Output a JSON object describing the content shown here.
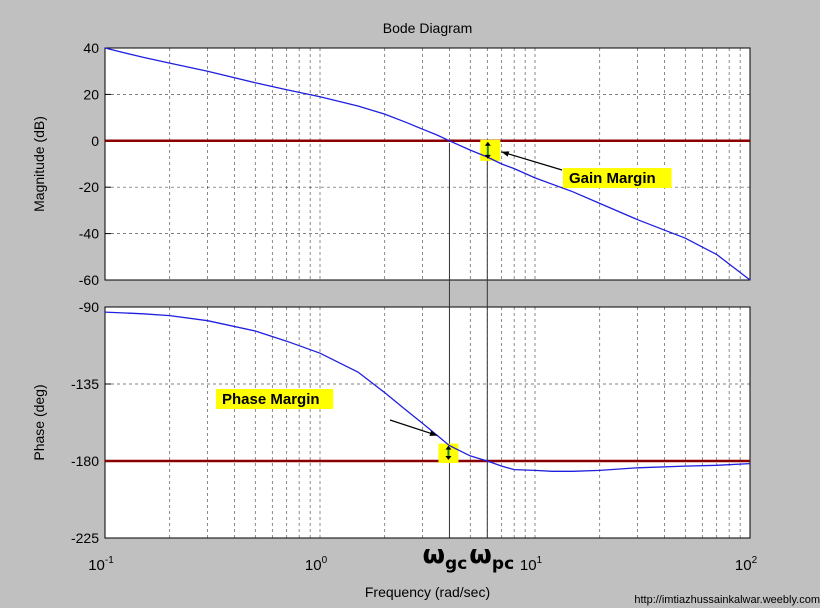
{
  "chart_data": {
    "type": "line",
    "title": "Bode Diagram",
    "xlabel": "Frequency (rad/sec)",
    "x_scale": "log",
    "xlim": [
      0.1,
      100
    ],
    "x_ticks": [
      {
        "value": 0.1,
        "base": "10",
        "exp": "-1"
      },
      {
        "value": 1,
        "base": "10",
        "exp": "0"
      },
      {
        "value": 10,
        "base": "10",
        "exp": "1"
      },
      {
        "value": 100,
        "base": "10",
        "exp": "2"
      }
    ],
    "grid": true,
    "colors": {
      "background": "#c0c0c0",
      "plot_bg": "#ffffff",
      "curve": "#1f1fe0",
      "reference": "#8b0000",
      "highlight": "#ffff00",
      "arrow": "#1a8a1a"
    },
    "magnitude": {
      "ylabel": "Magnitude (dB)",
      "ylim": [
        -60,
        40
      ],
      "y_ticks": [
        "40",
        "20",
        "0",
        "-20",
        "-40",
        "-60"
      ],
      "reference_line": 0,
      "x": [
        0.1,
        0.15,
        0.2,
        0.3,
        0.5,
        0.7,
        1.0,
        1.5,
        2.0,
        2.5,
        3.0,
        3.5,
        4.0,
        5.0,
        6.0,
        7.0,
        8.0,
        10,
        15,
        20,
        30,
        50,
        70,
        100
      ],
      "y": [
        40,
        36,
        33.5,
        30,
        25,
        22,
        19,
        15,
        11.5,
        8,
        5,
        2.5,
        0,
        -4,
        -7,
        -10,
        -12,
        -16,
        -22,
        -27,
        -34,
        -42,
        -49,
        -60
      ]
    },
    "phase": {
      "ylabel": "Phase (deg)",
      "ylim": [
        -225,
        -90
      ],
      "y_ticks": [
        "-90",
        "-135",
        "-180",
        "-225"
      ],
      "reference_line": -180,
      "x": [
        0.1,
        0.15,
        0.2,
        0.3,
        0.5,
        0.7,
        1.0,
        1.5,
        2.0,
        2.5,
        3.0,
        3.5,
        4.0,
        5.0,
        6.0,
        7.0,
        8.0,
        10,
        12,
        15,
        20,
        30,
        50,
        70,
        100
      ],
      "y": [
        -93,
        -94,
        -95,
        -98,
        -104,
        -110,
        -117,
        -128,
        -140,
        -150,
        -158,
        -165,
        -171,
        -177,
        -180,
        -183,
        -185,
        -185.5,
        -186,
        -186,
        -185.5,
        -184,
        -183,
        -182.5,
        -181.5
      ]
    },
    "markers": {
      "gain_crossover": {
        "x": 4.0,
        "main": "ω",
        "sub": "gc"
      },
      "phase_crossover": {
        "x": 6.0,
        "main": "ω",
        "sub": "pc"
      }
    },
    "annotations": {
      "gain_margin": "Gain Margin",
      "phase_margin": "Phase Margin"
    }
  },
  "credit": "http://imtiazhussainkalwar.weebly.com"
}
